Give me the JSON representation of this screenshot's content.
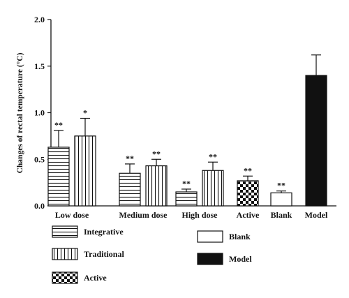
{
  "chart_data": {
    "type": "bar",
    "ylabel": "Changes of rectal temperature (°C)",
    "ylim": [
      0,
      2.0
    ],
    "yticks": [
      "0.0",
      "0.5",
      "1.0",
      "1.5",
      "2.0"
    ],
    "groups": [
      {
        "label": "Low dose",
        "bars": [
          {
            "series": "Integrative",
            "value": 0.63,
            "error": 0.18,
            "sig": "**"
          },
          {
            "series": "Traditional",
            "value": 0.75,
            "error": 0.19,
            "sig": "*"
          }
        ]
      },
      {
        "label": "Medium dose",
        "bars": [
          {
            "series": "Integrative",
            "value": 0.35,
            "error": 0.1,
            "sig": "**"
          },
          {
            "series": "Traditional",
            "value": 0.43,
            "error": 0.07,
            "sig": "**"
          }
        ]
      },
      {
        "label": "High dose",
        "bars": [
          {
            "series": "Integrative",
            "value": 0.15,
            "error": 0.03,
            "sig": "**"
          },
          {
            "series": "Traditional",
            "value": 0.38,
            "error": 0.09,
            "sig": "**"
          }
        ]
      },
      {
        "label": "Active",
        "bars": [
          {
            "series": "Active",
            "value": 0.27,
            "error": 0.05,
            "sig": "**"
          }
        ]
      },
      {
        "label": "Blank",
        "bars": [
          {
            "series": "Blank",
            "value": 0.14,
            "error": 0.02,
            "sig": "**"
          }
        ]
      },
      {
        "label": "Model",
        "bars": [
          {
            "series": "Model",
            "value": 1.4,
            "error": 0.22,
            "sig": ""
          }
        ]
      }
    ],
    "legend": [
      {
        "series": "Integrative",
        "label": "Integrative"
      },
      {
        "series": "Traditional",
        "label": "Traditional"
      },
      {
        "series": "Active",
        "label": "Active"
      },
      {
        "series": "Blank",
        "label": "Blank"
      },
      {
        "series": "Model",
        "label": "Model"
      }
    ]
  }
}
